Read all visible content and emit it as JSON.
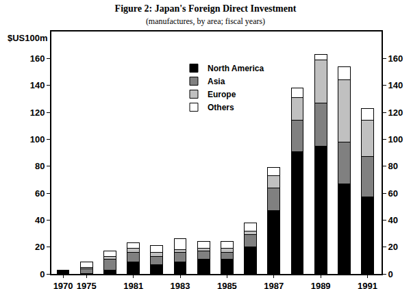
{
  "chart_data": {
    "type": "bar",
    "title": "Figure 2: Japan's Foreign Direct Investment",
    "subtitle": "(manufactures, by area; fiscal years)",
    "ylabel": "$US100m",
    "categories": [
      "1970",
      "1975",
      null,
      "1981",
      null,
      "1983",
      null,
      "1985",
      null,
      "1987",
      null,
      "1989",
      null,
      "1991"
    ],
    "series": [
      {
        "name": "North America",
        "color": "#000000",
        "values": [
          3,
          0.5,
          3,
          9,
          7,
          9,
          11,
          11,
          20,
          47,
          91,
          95,
          67,
          57
        ]
      },
      {
        "name": "Asia",
        "color": "#808080",
        "values": [
          0,
          3.5,
          8,
          7,
          6,
          7,
          6,
          5,
          9,
          17,
          23,
          32,
          31,
          30
        ]
      },
      {
        "name": "Europe",
        "color": "#c0c0c0",
        "values": [
          0,
          1,
          2,
          3,
          3,
          2,
          2,
          3,
          3,
          9,
          17,
          32,
          46,
          27
        ]
      },
      {
        "name": "Others",
        "color": "#ffffff",
        "values": [
          0,
          4,
          4,
          4,
          5,
          8,
          5,
          5,
          6,
          6,
          7,
          4,
          10,
          9
        ]
      }
    ],
    "stacked": true,
    "ylim": [
      0,
      180
    ],
    "yticks": [
      0,
      20,
      40,
      60,
      80,
      100,
      120,
      140,
      160
    ],
    "y2lim": [
      0,
      180
    ],
    "y2ticks": [
      0,
      20,
      40,
      60,
      80,
      100,
      120,
      140,
      160
    ],
    "legend": "top",
    "grid": false
  }
}
